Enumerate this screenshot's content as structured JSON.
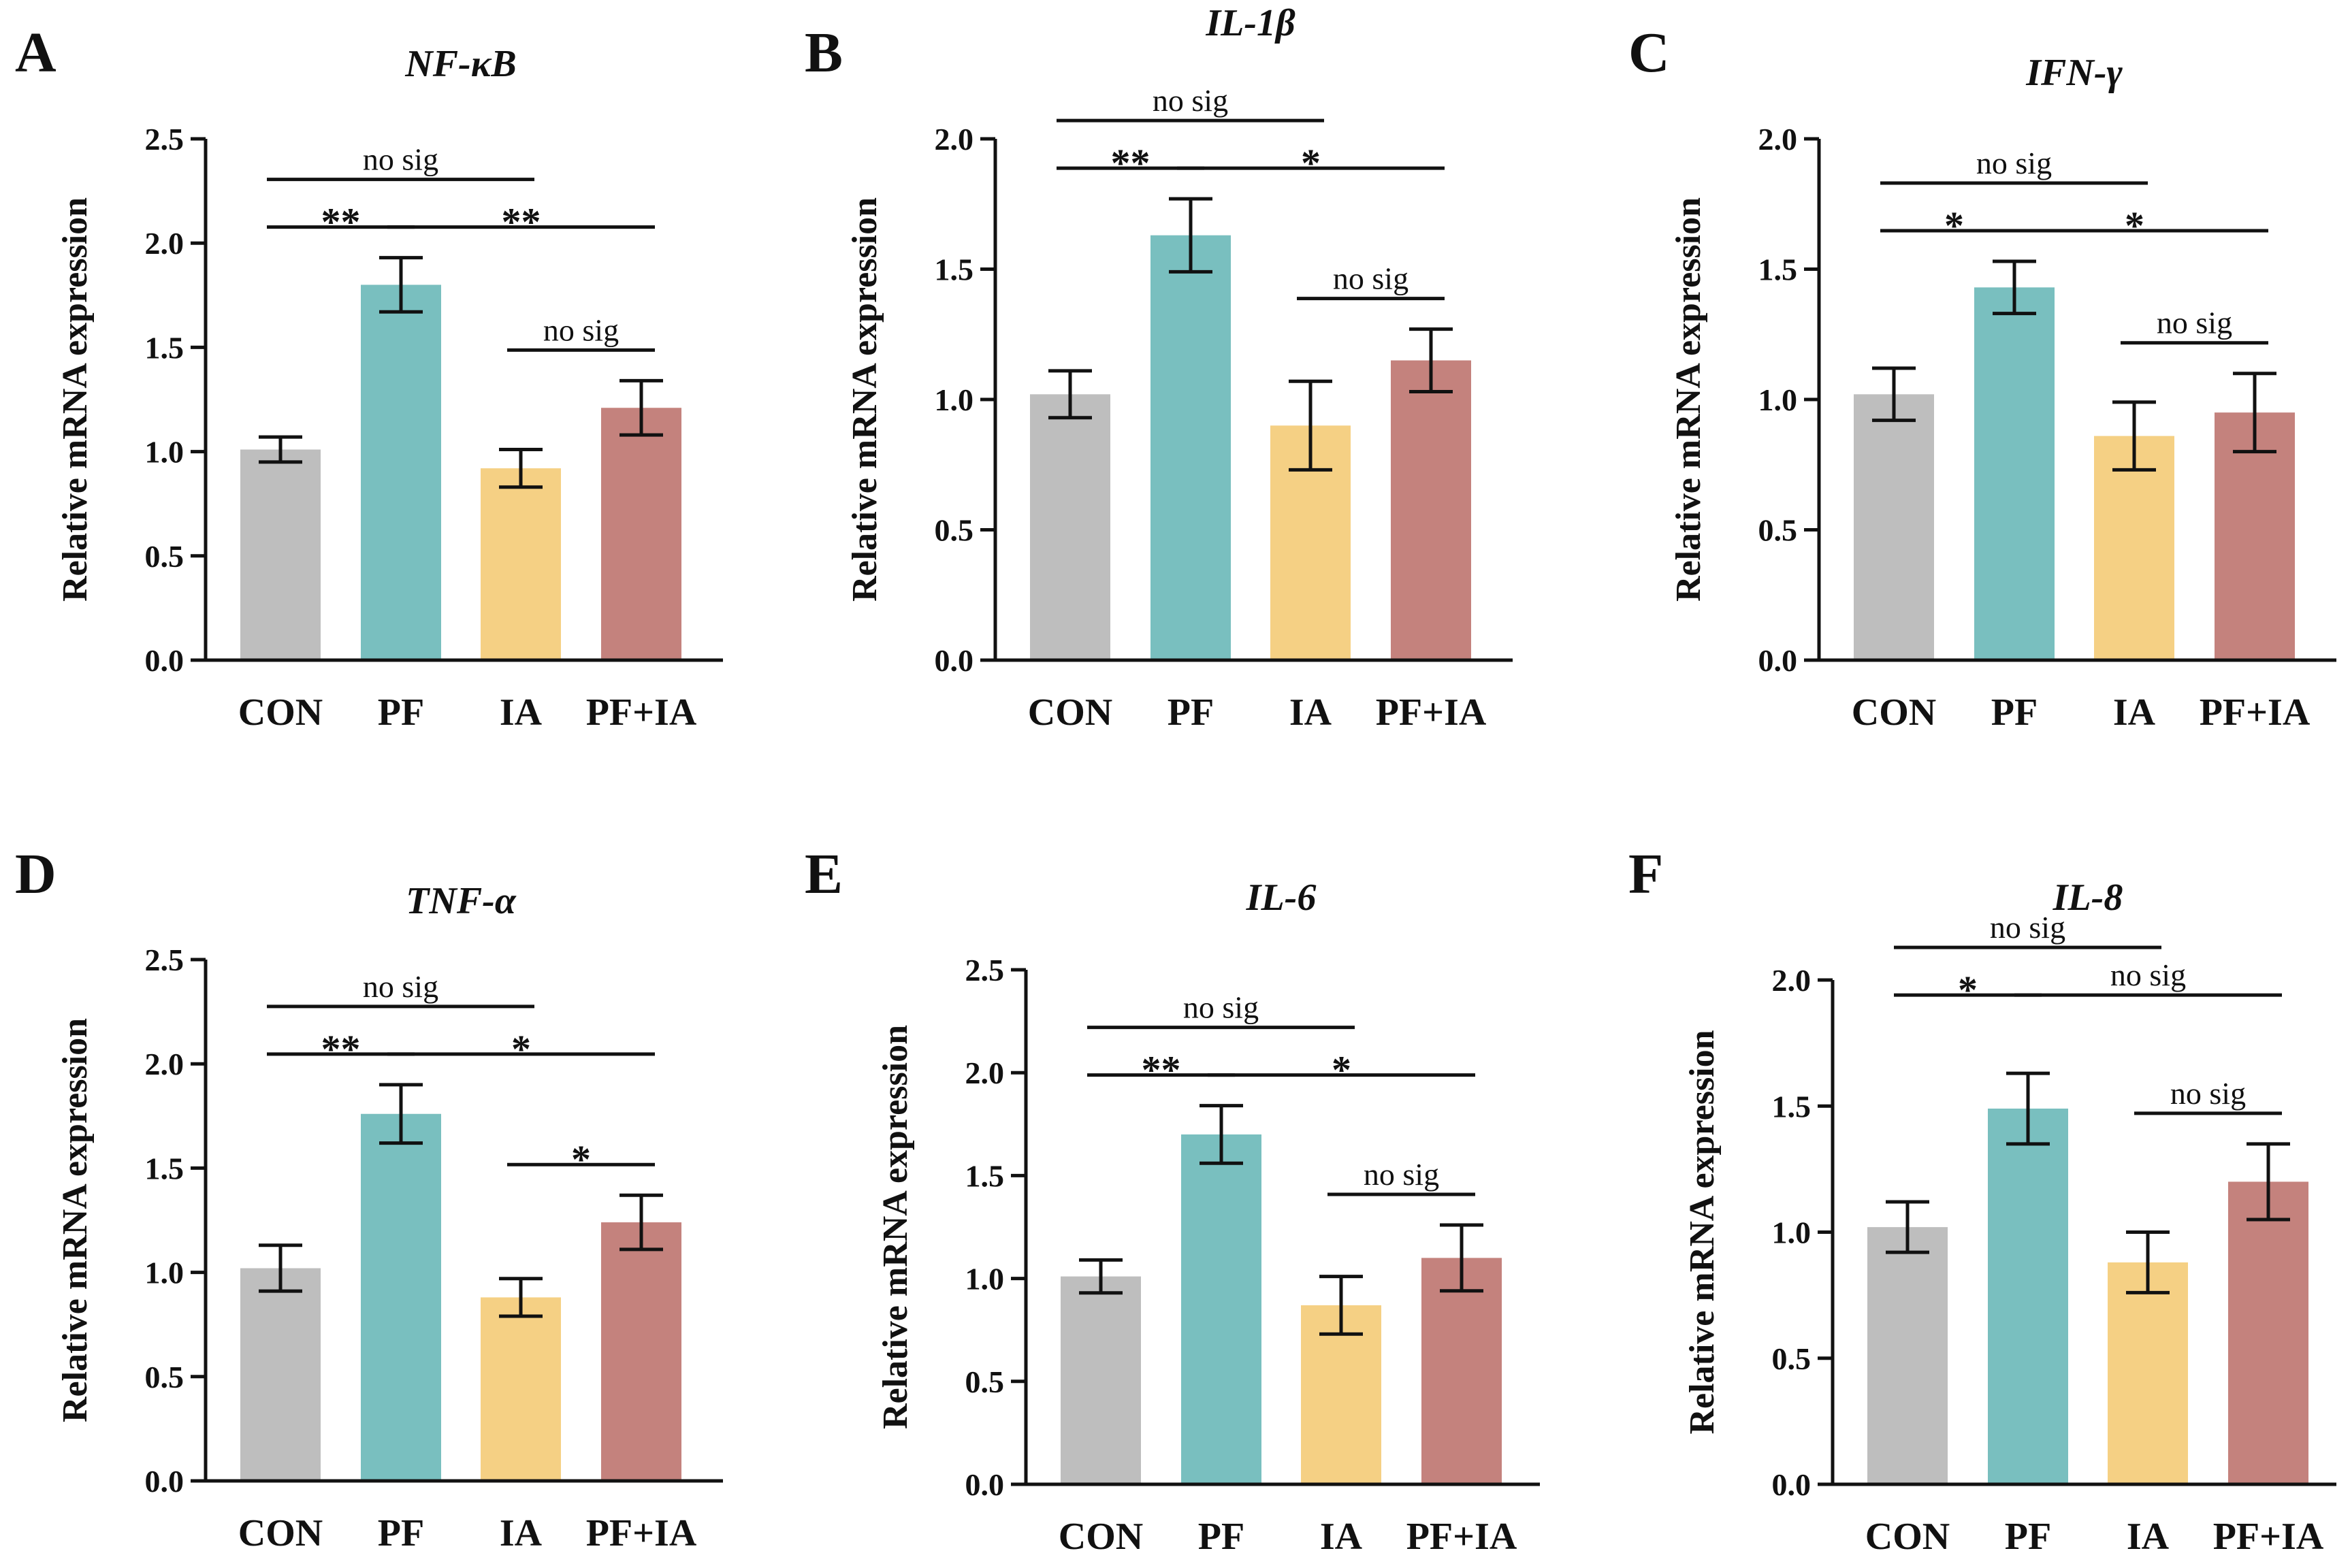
{
  "colors": {
    "CON": "#bebebe",
    "PF": "#79bfbf",
    "IA": "#f5d084",
    "PF+IA": "#c4827d",
    "axis": "#111111"
  },
  "chart_data": [
    {
      "panel": "A",
      "title": "NF-κB",
      "type": "bar",
      "ylabel": "Relative mRNA expression",
      "categories": [
        "CON",
        "PF",
        "IA",
        "PF+IA"
      ],
      "values": [
        1.01,
        1.8,
        0.92,
        1.21
      ],
      "errors": [
        0.06,
        0.13,
        0.09,
        0.13
      ],
      "ylim": [
        0,
        2.5
      ],
      "yticks": [
        "0.0",
        "0.5",
        "1.0",
        "1.5",
        "2.0",
        "2.5"
      ],
      "significance": [
        {
          "from": 0,
          "to": 2,
          "label": "no sig",
          "level": 3
        },
        {
          "from": 0,
          "to": 1,
          "label": "**",
          "level": 2
        },
        {
          "from": 1,
          "to": 3,
          "label": "**",
          "level": 2
        },
        {
          "from": 2,
          "to": 3,
          "label": "no sig",
          "level": 1
        }
      ]
    },
    {
      "panel": "B",
      "title": "IL-1β",
      "type": "bar",
      "ylabel": "Relative mRNA expression",
      "categories": [
        "CON",
        "PF",
        "IA",
        "PF+IA"
      ],
      "values": [
        1.02,
        1.63,
        0.9,
        1.15
      ],
      "errors": [
        0.09,
        0.14,
        0.17,
        0.12
      ],
      "ylim": [
        0,
        2.0
      ],
      "yticks": [
        "0.0",
        "0.5",
        "1.0",
        "1.5",
        "2.0"
      ],
      "significance": [
        {
          "from": 0,
          "to": 2,
          "label": "no sig",
          "level": 3
        },
        {
          "from": 0,
          "to": 1,
          "label": "**",
          "level": 2
        },
        {
          "from": 1,
          "to": 3,
          "label": "*",
          "level": 2
        },
        {
          "from": 2,
          "to": 3,
          "label": "no sig",
          "level": 1
        }
      ]
    },
    {
      "panel": "C",
      "title": "IFN-γ",
      "type": "bar",
      "ylabel": "Relative mRNA expression",
      "categories": [
        "CON",
        "PF",
        "IA",
        "PF+IA"
      ],
      "values": [
        1.02,
        1.43,
        0.86,
        0.95
      ],
      "errors": [
        0.1,
        0.1,
        0.13,
        0.15
      ],
      "ylim": [
        0,
        2.0
      ],
      "yticks": [
        "0.0",
        "0.5",
        "1.0",
        "1.5",
        "2.0"
      ],
      "significance": [
        {
          "from": 0,
          "to": 2,
          "label": "no sig",
          "level": 3
        },
        {
          "from": 0,
          "to": 1,
          "label": "*",
          "level": 2
        },
        {
          "from": 1,
          "to": 3,
          "label": "*",
          "level": 2
        },
        {
          "from": 2,
          "to": 3,
          "label": "no sig",
          "level": 1
        }
      ]
    },
    {
      "panel": "D",
      "title": "TNF-α",
      "type": "bar",
      "ylabel": "Relative mRNA expression",
      "categories": [
        "CON",
        "PF",
        "IA",
        "PF+IA"
      ],
      "values": [
        1.02,
        1.76,
        0.88,
        1.24
      ],
      "errors": [
        0.11,
        0.14,
        0.09,
        0.13
      ],
      "ylim": [
        0,
        2.5
      ],
      "yticks": [
        "0.0",
        "0.5",
        "1.0",
        "1.5",
        "2.0",
        "2.5"
      ],
      "significance": [
        {
          "from": 0,
          "to": 2,
          "label": "no sig",
          "level": 3
        },
        {
          "from": 0,
          "to": 1,
          "label": "**",
          "level": 2
        },
        {
          "from": 1,
          "to": 3,
          "label": "*",
          "level": 2
        },
        {
          "from": 2,
          "to": 3,
          "label": "*",
          "level": 1
        }
      ]
    },
    {
      "panel": "E",
      "title": "IL-6",
      "type": "bar",
      "ylabel": "Relative mRNA expression",
      "categories": [
        "CON",
        "PF",
        "IA",
        "PF+IA"
      ],
      "values": [
        1.01,
        1.7,
        0.87,
        1.1
      ],
      "errors": [
        0.08,
        0.14,
        0.14,
        0.16
      ],
      "ylim": [
        0,
        2.5
      ],
      "yticks": [
        "0.0",
        "0.5",
        "1.0",
        "1.5",
        "2.0",
        "2.5"
      ],
      "significance": [
        {
          "from": 0,
          "to": 2,
          "label": "no sig",
          "level": 3
        },
        {
          "from": 0,
          "to": 1,
          "label": "**",
          "level": 2
        },
        {
          "from": 1,
          "to": 3,
          "label": "*",
          "level": 2
        },
        {
          "from": 2,
          "to": 3,
          "label": "no sig",
          "level": 1
        }
      ]
    },
    {
      "panel": "F",
      "title": "IL-8",
      "type": "bar",
      "ylabel": "Relative mRNA expression",
      "categories": [
        "CON",
        "PF",
        "IA",
        "PF+IA"
      ],
      "values": [
        1.02,
        1.49,
        0.88,
        1.2
      ],
      "errors": [
        0.1,
        0.14,
        0.12,
        0.15
      ],
      "ylim": [
        0,
        2.0
      ],
      "yticks": [
        "0.0",
        "0.5",
        "1.0",
        "1.5",
        "2.0"
      ],
      "significance": [
        {
          "from": 0,
          "to": 2,
          "label": "no sig",
          "level": 4
        },
        {
          "from": 0,
          "to": 1,
          "label": "*",
          "level": 3
        },
        {
          "from": 1,
          "to": 3,
          "label": "no sig",
          "level": 3
        },
        {
          "from": 2,
          "to": 3,
          "label": "no sig",
          "level": 1
        }
      ]
    }
  ]
}
